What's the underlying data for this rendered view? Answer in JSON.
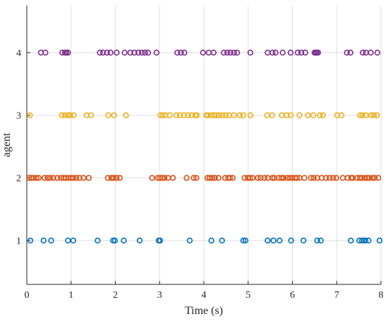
{
  "chart_data": {
    "type": "scatter",
    "xlabel": "Time (s)",
    "ylabel": "agent",
    "xlim": [
      0,
      8
    ],
    "ylim": [
      0.3,
      4.75
    ],
    "xticks": [
      0,
      1,
      2,
      3,
      4,
      5,
      6,
      7,
      8
    ],
    "yticks": [
      1,
      2,
      3,
      4
    ],
    "grid": true,
    "series": [
      {
        "agent": 1,
        "color": "#0072BD",
        "x": [
          0.08,
          0.38,
          0.55,
          0.93,
          1.05,
          1.6,
          1.95,
          1.99,
          2.19,
          2.55,
          2.98,
          3.01,
          3.68,
          4.17,
          4.41,
          4.89,
          4.94,
          5.44,
          5.57,
          5.71,
          5.97,
          6.25,
          6.56,
          6.64,
          7.32,
          7.51,
          7.57,
          7.61,
          7.65,
          7.72,
          7.97
        ]
      },
      {
        "agent": 2,
        "color": "#D95319",
        "x": [
          0.05,
          0.1,
          0.15,
          0.22,
          0.27,
          0.4,
          0.47,
          0.53,
          0.6,
          0.69,
          0.77,
          0.83,
          0.88,
          0.94,
          1.0,
          1.05,
          1.12,
          1.19,
          1.28,
          1.4,
          1.83,
          1.91,
          1.96,
          2.03,
          2.1,
          2.83,
          2.96,
          3.01,
          3.06,
          3.11,
          3.19,
          3.3,
          3.61,
          3.77,
          3.83,
          4.08,
          4.13,
          4.19,
          4.25,
          4.33,
          4.48,
          4.55,
          4.59,
          4.65,
          4.92,
          4.99,
          5.04,
          5.1,
          5.22,
          5.28,
          5.37,
          5.44,
          5.55,
          5.59,
          5.69,
          5.75,
          5.8,
          5.88,
          5.94,
          6.0,
          6.06,
          6.1,
          6.16,
          6.27,
          6.42,
          6.48,
          6.56,
          6.66,
          6.76,
          6.84,
          6.92,
          6.99,
          7.14,
          7.25,
          7.33,
          7.36,
          7.46,
          7.52,
          7.57,
          7.64,
          7.69,
          7.73,
          7.81,
          7.86,
          7.94
        ]
      },
      {
        "agent": 3,
        "color": "#EDB120",
        "x": [
          0.07,
          0.79,
          0.86,
          0.93,
          0.98,
          1.06,
          1.35,
          1.45,
          1.84,
          1.97,
          2.24,
          3.02,
          3.07,
          3.13,
          3.23,
          3.38,
          3.46,
          3.55,
          3.64,
          3.72,
          3.81,
          3.84,
          4.05,
          4.09,
          4.17,
          4.23,
          4.28,
          4.34,
          4.42,
          4.49,
          4.57,
          4.68,
          4.81,
          4.89,
          5.05,
          5.43,
          5.54,
          5.76,
          5.87,
          5.96,
          6.16,
          6.35,
          6.47,
          6.62,
          6.69,
          7.01,
          7.11,
          7.53,
          7.58,
          7.66,
          7.78,
          7.84,
          7.91
        ]
      },
      {
        "agent": 4,
        "color": "#7E2F8E",
        "x": [
          0.32,
          0.42,
          0.8,
          0.86,
          0.89,
          0.93,
          1.65,
          1.72,
          1.81,
          1.89,
          2.03,
          2.21,
          2.34,
          2.43,
          2.52,
          2.6,
          2.67,
          2.74,
          2.93,
          3.4,
          3.48,
          3.56,
          3.98,
          4.11,
          4.22,
          4.45,
          4.53,
          4.6,
          4.68,
          4.75,
          5.05,
          5.44,
          5.55,
          5.62,
          5.78,
          5.96,
          6.12,
          6.2,
          6.29,
          6.5,
          6.53,
          6.55,
          6.58,
          7.23,
          7.31,
          7.59,
          7.66,
          7.77,
          7.92
        ]
      }
    ]
  }
}
